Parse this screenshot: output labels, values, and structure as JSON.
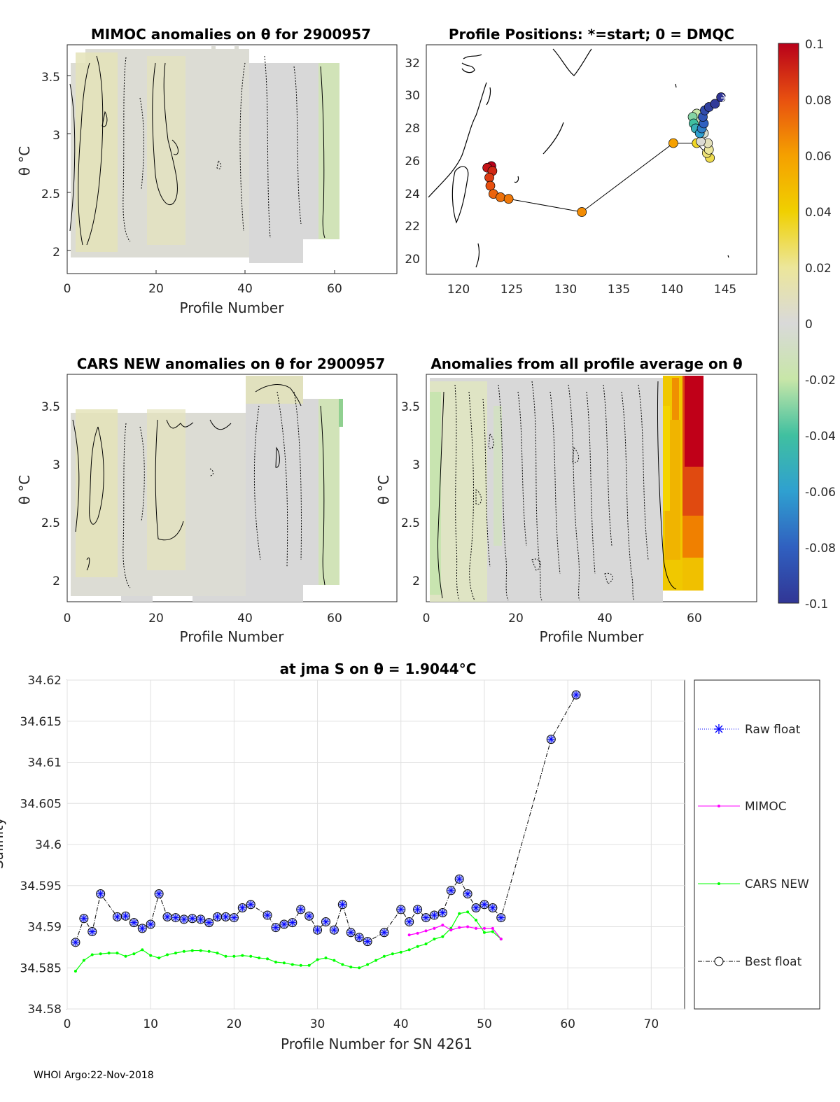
{
  "footer": "WHOI Argo:22-Nov-2018",
  "colorbar": {
    "ticks": [
      "0.1",
      "0.08",
      "0.06",
      "0.04",
      "0.02",
      "0",
      "-0.02",
      "-0.04",
      "-0.06",
      "-0.08",
      "-0.1"
    ],
    "min": -0.1,
    "max": 0.1
  },
  "panels": {
    "mimoc": {
      "title": "MIMOC anomalies on θ  for 2900957",
      "xlabel": "Profile Number",
      "ylabel": "θ °C",
      "xticks": [
        "0",
        "20",
        "40",
        "60"
      ],
      "yticks": [
        "3.5",
        "3",
        "2.5",
        "2"
      ]
    },
    "positions": {
      "title": "Profile Positions: *=start; 0 = DMQC",
      "xticks": [
        "120",
        "125",
        "130",
        "135",
        "140",
        "145"
      ],
      "yticks": [
        "32",
        "30",
        "28",
        "26",
        "24",
        "22",
        "20"
      ]
    },
    "cars": {
      "title": "CARS NEW anomalies on θ for 2900957",
      "xlabel": "Profile Number",
      "ylabel": "θ °C",
      "xticks": [
        "0",
        "20",
        "40",
        "60"
      ],
      "yticks": [
        "3.5",
        "3",
        "2.5",
        "2"
      ]
    },
    "allavg": {
      "title": "Anomalies from all profile average on θ",
      "xlabel": "Profile Number",
      "ylabel": "θ °C",
      "xticks": [
        "0",
        "20",
        "40",
        "60"
      ],
      "yticks": [
        "3.5",
        "3",
        "2.5",
        "2"
      ]
    }
  },
  "chart_data": {
    "type": "line",
    "title": "at jma S on θ = 1.9044°C",
    "xlabel": "Profile Number for SN 4261",
    "ylabel": "Salinity",
    "xlim": [
      0,
      74
    ],
    "ylim": [
      34.58,
      34.62
    ],
    "xticks": [
      "0",
      "10",
      "20",
      "30",
      "40",
      "50",
      "60",
      "70"
    ],
    "yticks": [
      "34.62",
      "34.615",
      "34.61",
      "34.605",
      "34.6",
      "34.595",
      "34.59",
      "34.585",
      "34.58"
    ],
    "legend": [
      {
        "name": "Raw float",
        "color": "#0000ff"
      },
      {
        "name": "MIMOC",
        "color": "#ff00ff"
      },
      {
        "name": "CARS NEW",
        "color": "#00ff00"
      },
      {
        "name": "Best float",
        "color": "#000000"
      }
    ],
    "series": [
      {
        "name": "Best float",
        "x": [
          1,
          2,
          3,
          4,
          6,
          7,
          8,
          9,
          10,
          11,
          12,
          13,
          14,
          15,
          16,
          17,
          18,
          19,
          20,
          21,
          22,
          24,
          25,
          26,
          27,
          28,
          29,
          30,
          31,
          32,
          33,
          34,
          35,
          36,
          38,
          40,
          41,
          42,
          43,
          44,
          45,
          46,
          47,
          48,
          49,
          50,
          51,
          52,
          58,
          61
        ],
        "y": [
          34.5881,
          34.591,
          34.5894,
          34.594,
          34.5912,
          34.5913,
          34.5905,
          34.5898,
          34.5903,
          34.594,
          34.5912,
          34.5911,
          34.5909,
          34.591,
          34.5909,
          34.5905,
          34.5912,
          34.5912,
          34.5911,
          34.5923,
          34.5927,
          34.5914,
          34.5899,
          34.5903,
          34.5905,
          34.5921,
          34.5913,
          34.5896,
          34.5906,
          34.5896,
          34.5927,
          34.5893,
          34.5887,
          34.5882,
          34.5893,
          34.5921,
          34.5906,
          34.5921,
          34.5911,
          34.5914,
          34.5917,
          34.5944,
          34.5958,
          34.594,
          34.5923,
          34.5927,
          34.5923,
          34.5911,
          34.6128,
          34.6182
        ]
      },
      {
        "name": "MIMOC",
        "x": [
          41,
          42,
          43,
          44,
          45,
          46,
          47,
          48,
          49,
          50,
          51,
          52
        ],
        "y": [
          34.589,
          34.5892,
          34.5895,
          34.5898,
          34.5902,
          34.5896,
          34.5899,
          34.59,
          34.5898,
          34.5898,
          34.5898,
          34.5885
        ]
      },
      {
        "name": "CARS NEW",
        "x": [
          1,
          2,
          3,
          4,
          5,
          6,
          7,
          8,
          9,
          10,
          11,
          12,
          13,
          14,
          15,
          16,
          17,
          18,
          19,
          20,
          21,
          22,
          23,
          24,
          25,
          26,
          27,
          28,
          29,
          30,
          31,
          32,
          33,
          34,
          35,
          36,
          37,
          38,
          39,
          40,
          41,
          42,
          43,
          44,
          45,
          46,
          47,
          48,
          49,
          50,
          51,
          52
        ],
        "y": [
          34.5846,
          34.5859,
          34.5866,
          34.5867,
          34.5868,
          34.5868,
          34.5864,
          34.5867,
          34.5872,
          34.5865,
          34.5862,
          34.5866,
          34.5868,
          34.587,
          34.5871,
          34.5871,
          34.587,
          34.5868,
          34.5864,
          34.5864,
          34.5865,
          34.5864,
          34.5862,
          34.5861,
          34.5857,
          34.5856,
          34.5854,
          34.5853,
          34.5853,
          34.586,
          34.5862,
          34.5859,
          34.5854,
          34.5851,
          34.585,
          34.5854,
          34.5859,
          34.5864,
          34.5867,
          34.5869,
          34.5872,
          34.5876,
          34.5879,
          34.5885,
          34.5888,
          34.5898,
          34.5916,
          34.5918,
          34.5908,
          34.5893,
          34.5894,
          34.5885
        ]
      }
    ]
  },
  "positions_data": {
    "xlim": [
      116,
      148.5
    ],
    "ylim": [
      19,
      33
    ],
    "track": [
      {
        "lon": 145.0,
        "lat": 29.8,
        "c": -0.1
      },
      {
        "lon": 144.4,
        "lat": 29.4,
        "c": -0.098
      },
      {
        "lon": 143.8,
        "lat": 29.2,
        "c": -0.095
      },
      {
        "lon": 143.4,
        "lat": 29.0,
        "c": -0.09
      },
      {
        "lon": 143.2,
        "lat": 28.6,
        "c": -0.085
      },
      {
        "lon": 143.3,
        "lat": 28.2,
        "c": -0.08
      },
      {
        "lon": 143.1,
        "lat": 27.9,
        "c": -0.07
      },
      {
        "lon": 142.9,
        "lat": 27.6,
        "c": -0.06
      },
      {
        "lon": 142.5,
        "lat": 27.9,
        "c": -0.05
      },
      {
        "lon": 142.3,
        "lat": 28.2,
        "c": -0.04
      },
      {
        "lon": 142.2,
        "lat": 28.6,
        "c": -0.03
      },
      {
        "lon": 142.6,
        "lat": 28.8,
        "c": -0.02
      },
      {
        "lon": 143.0,
        "lat": 28.4,
        "c": -0.012
      },
      {
        "lon": 143.3,
        "lat": 27.6,
        "c": -0.005
      },
      {
        "lon": 143.0,
        "lat": 27.1,
        "c": 0.002
      },
      {
        "lon": 143.7,
        "lat": 27.0,
        "c": 0.01
      },
      {
        "lon": 143.8,
        "lat": 26.6,
        "c": 0.02
      },
      {
        "lon": 143.6,
        "lat": 26.4,
        "c": 0.025
      },
      {
        "lon": 143.9,
        "lat": 26.1,
        "c": 0.03
      },
      {
        "lon": 142.6,
        "lat": 27.0,
        "c": 0.035
      },
      {
        "lon": 140.3,
        "lat": 27.0,
        "c": 0.06
      },
      {
        "lon": 131.3,
        "lat": 22.8,
        "c": 0.065
      },
      {
        "lon": 124.1,
        "lat": 23.6,
        "c": 0.07
      },
      {
        "lon": 123.3,
        "lat": 23.7,
        "c": 0.072
      },
      {
        "lon": 122.6,
        "lat": 23.9,
        "c": 0.075
      },
      {
        "lon": 122.3,
        "lat": 24.4,
        "c": 0.08
      },
      {
        "lon": 122.2,
        "lat": 24.9,
        "c": 0.085
      },
      {
        "lon": 122.5,
        "lat": 25.3,
        "c": 0.09
      },
      {
        "lon": 122.0,
        "lat": 25.5,
        "c": 0.095
      },
      {
        "lon": 122.4,
        "lat": 25.6,
        "c": 0.1
      }
    ]
  }
}
